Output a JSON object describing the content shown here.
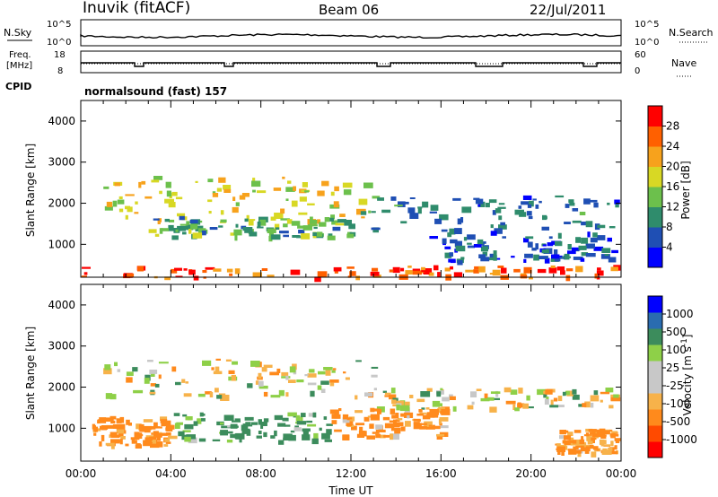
{
  "header": {
    "station": "Inuvik (fitACF)",
    "beam": "Beam 06",
    "date": "22/Jul/2011"
  },
  "panels": {
    "nsky": {
      "label": "N.Sky",
      "ticks": [
        "10^5",
        "10^0"
      ],
      "right_label": "N.Search",
      "right_ticks": [
        "10^5",
        "10^0"
      ]
    },
    "freq": {
      "label_line1": "Freq.",
      "label_line2": "[MHz]",
      "ticks": [
        "18",
        "8"
      ],
      "right_label": "Nave",
      "right_ticks": [
        "60",
        "0"
      ]
    },
    "cpid": {
      "label": "CPID",
      "value": "normalsound (fast) 157"
    }
  },
  "chart_data": [
    {
      "type": "heatmap",
      "name": "power",
      "ylabel": "Slant Range [km]",
      "xlabel": "",
      "xlim_hours": [
        0,
        24
      ],
      "ylim": [
        200,
        4500
      ],
      "yticks": [
        "1000",
        "2000",
        "3000",
        "4000"
      ],
      "colorbar": {
        "label": "Power [dB]",
        "ticks": [
          "28",
          "24",
          "20",
          "16",
          "12",
          "8",
          "4"
        ],
        "colors": [
          "#0000ff",
          "#1f4fb4",
          "#2f8c6c",
          "#6cc04c",
          "#d8d824",
          "#f7a21c",
          "#ff6000",
          "#ff0000"
        ]
      },
      "bands": [
        {
          "t0": 0.0,
          "t1": 24.0,
          "r0": 200,
          "r1": 500,
          "value_db": 26
        },
        {
          "t0": 1.0,
          "t1": 13.0,
          "r0": 1600,
          "r1": 2700,
          "value_db": 18
        },
        {
          "t0": 3.0,
          "t1": 12.0,
          "r0": 1200,
          "r1": 1700,
          "value_db": 12
        },
        {
          "t0": 12.0,
          "t1": 24.0,
          "r0": 1200,
          "r1": 2200,
          "value_db": 8
        },
        {
          "t0": 16.0,
          "t1": 24.0,
          "r0": 600,
          "r1": 1200,
          "value_db": 6
        }
      ]
    },
    {
      "type": "heatmap",
      "name": "velocity",
      "ylabel": "Slant Range [km]",
      "xlabel": "Time UT",
      "xlim_hours": [
        0,
        24
      ],
      "ylim": [
        200,
        4500
      ],
      "yticks": [
        "1000",
        "2000",
        "3000",
        "4000"
      ],
      "xticks": [
        "00:00",
        "04:00",
        "08:00",
        "12:00",
        "16:00",
        "20:00",
        "00:00"
      ],
      "colorbar": {
        "label": "Velocity [m s^-1]",
        "ticks": [
          "1000",
          "500",
          "100",
          "25",
          "-25",
          "-100",
          "-500",
          "-1000"
        ],
        "colors": [
          "#ff0000",
          "#ff4a00",
          "#ff8a1c",
          "#f7b24a",
          "#c8c8c8",
          "#c8c8c8",
          "#8ed048",
          "#3c8c5c",
          "#2a6cb0",
          "#0000ff"
        ]
      },
      "bands": [
        {
          "t0": 1.0,
          "t1": 13.0,
          "r0": 1800,
          "r1": 2700,
          "value_ms": 0
        },
        {
          "t0": 13.0,
          "t1": 24.0,
          "r0": 1500,
          "r1": 2000,
          "value_ms": 0
        },
        {
          "t0": 4.0,
          "t1": 11.0,
          "r0": 700,
          "r1": 1400,
          "value_ms": 150
        },
        {
          "t0": 0.5,
          "t1": 4.0,
          "r0": 600,
          "r1": 1300,
          "value_ms": -200
        },
        {
          "t0": 11.0,
          "t1": 16.0,
          "r0": 800,
          "r1": 1500,
          "value_ms": -150
        },
        {
          "t0": 21.0,
          "t1": 24.0,
          "r0": 400,
          "r1": 1000,
          "value_ms": -150
        }
      ]
    }
  ]
}
